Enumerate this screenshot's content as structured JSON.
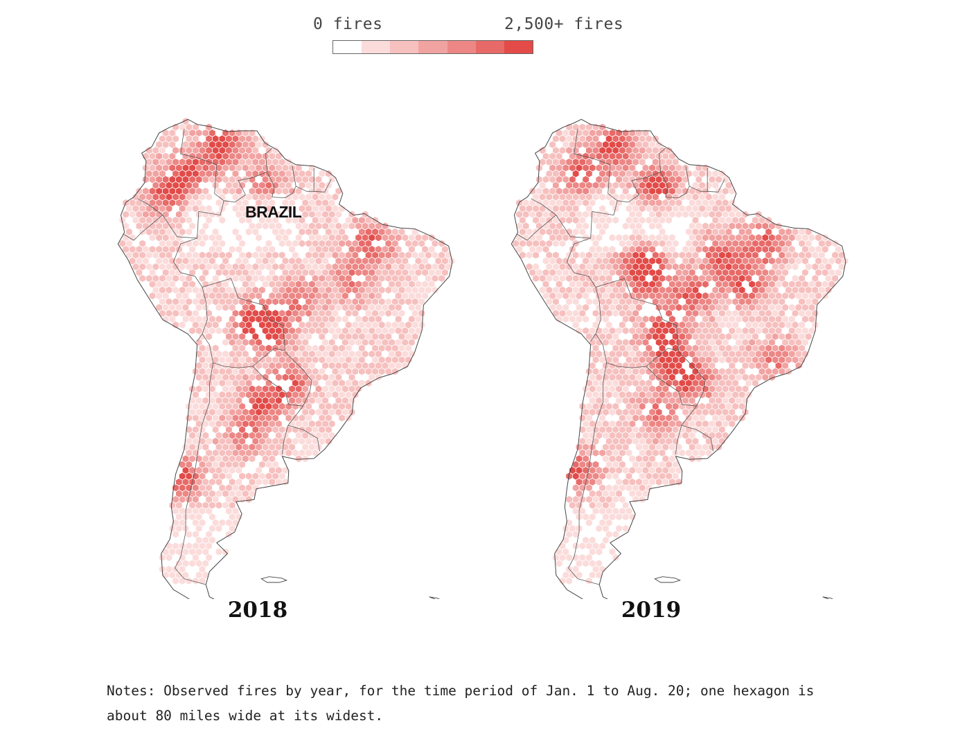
{
  "legend": {
    "min_label": "0 fires",
    "max_label": "2,500+ fires",
    "swatches": [
      "#ffffff",
      "#fbdcdb",
      "#f6c0bf",
      "#f1a3a2",
      "#ec8785",
      "#e76a68",
      "#e24b48"
    ]
  },
  "maps": [
    {
      "year": "2018",
      "hotspots": [
        {
          "name": "venezuela-north",
          "lon": -67.0,
          "lat": 8.5,
          "intensity": 5
        },
        {
          "name": "colombia-llanos",
          "lon": -71.5,
          "lat": 5.0,
          "intensity": 4
        },
        {
          "name": "roraima",
          "lon": -61.0,
          "lat": 3.5,
          "intensity": 3
        },
        {
          "name": "colombia-west",
          "lon": -74.5,
          "lat": 2.0,
          "intensity": 4
        },
        {
          "name": "para-maranhao",
          "lon": -46.0,
          "lat": -5.0,
          "intensity": 4
        },
        {
          "name": "tocantins",
          "lon": -48.5,
          "lat": -10.0,
          "intensity": 3
        },
        {
          "name": "mato-grosso",
          "lon": -56.0,
          "lat": -12.5,
          "intensity": 3
        },
        {
          "name": "bolivia-beni",
          "lon": -62.5,
          "lat": -15.5,
          "intensity": 4
        },
        {
          "name": "bolivia-chiquitania",
          "lon": -60.0,
          "lat": -17.0,
          "intensity": 5
        },
        {
          "name": "paraguay",
          "lon": -57.5,
          "lat": -24.5,
          "intensity": 4
        },
        {
          "name": "chaco",
          "lon": -61.5,
          "lat": -27.0,
          "intensity": 4
        },
        {
          "name": "argentina-pampas",
          "lon": -63.5,
          "lat": -31.5,
          "intensity": 3
        },
        {
          "name": "chile-central",
          "lon": -72.0,
          "lat": -37.5,
          "intensity": 4
        }
      ]
    },
    {
      "year": "2019",
      "hotspots": [
        {
          "name": "venezuela-north",
          "lon": -67.0,
          "lat": 8.5,
          "intensity": 5
        },
        {
          "name": "colombia-llanos",
          "lon": -71.5,
          "lat": 5.0,
          "intensity": 4
        },
        {
          "name": "roraima",
          "lon": -61.0,
          "lat": 3.0,
          "intensity": 5
        },
        {
          "name": "amazonas-south",
          "lon": -63.0,
          "lat": -7.5,
          "intensity": 4
        },
        {
          "name": "rondonia",
          "lon": -62.0,
          "lat": -10.0,
          "intensity": 4
        },
        {
          "name": "para-south",
          "lon": -52.0,
          "lat": -7.0,
          "intensity": 4
        },
        {
          "name": "para-maranhao",
          "lon": -46.0,
          "lat": -5.0,
          "intensity": 4
        },
        {
          "name": "tocantins",
          "lon": -48.5,
          "lat": -10.5,
          "intensity": 4
        },
        {
          "name": "mato-grosso",
          "lon": -56.0,
          "lat": -12.0,
          "intensity": 4
        },
        {
          "name": "bolivia-chiquitania",
          "lon": -60.0,
          "lat": -17.0,
          "intensity": 5
        },
        {
          "name": "paraguay-chaco",
          "lon": -59.0,
          "lat": -21.5,
          "intensity": 5
        },
        {
          "name": "paraguay-east",
          "lon": -56.0,
          "lat": -24.0,
          "intensity": 4
        },
        {
          "name": "argentina-north",
          "lon": -61.0,
          "lat": -28.5,
          "intensity": 3
        },
        {
          "name": "chile-central",
          "lon": -72.0,
          "lat": -36.5,
          "intensity": 4
        },
        {
          "name": "brazil-southeast",
          "lon": -45.0,
          "lat": -21.0,
          "intensity": 3
        }
      ]
    }
  ],
  "country_label": "BRAZIL",
  "notes": "Notes: Observed fires by year, for the time period of Jan. 1 to Aug. 20; one hexagon is about 80 miles wide at its widest."
}
